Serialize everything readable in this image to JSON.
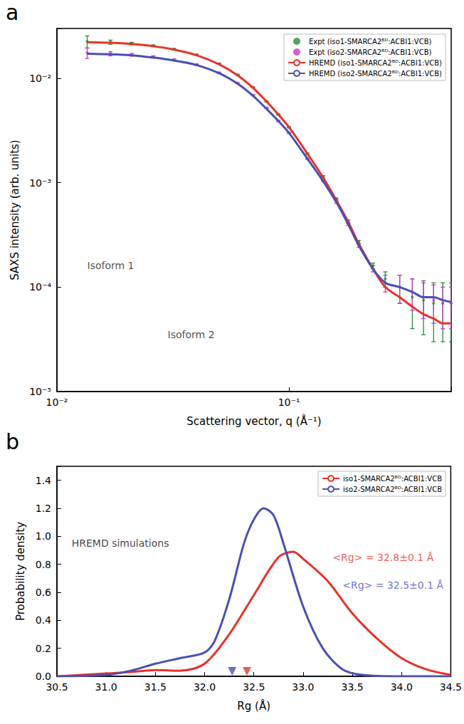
{
  "chart_data": [
    {
      "panel": "a",
      "type": "line",
      "log": true,
      "xlabel": "Scattering vector, q (Å⁻¹)",
      "ylabel": "SAXS intensity (arb. units)",
      "xlim": [
        0.01,
        0.5
      ],
      "ylim": [
        1e-05,
        0.03
      ],
      "xticks": [
        {
          "value": 0.01,
          "label": "10⁻²"
        },
        {
          "value": 0.1,
          "label": "10⁻¹"
        }
      ],
      "yticks": [
        {
          "value": 1e-05,
          "label": "10⁻⁵"
        },
        {
          "value": 0.0001,
          "label": "10⁻⁴"
        },
        {
          "value": 0.001,
          "label": "10⁻³"
        },
        {
          "value": 0.01,
          "label": "10⁻²"
        }
      ],
      "grid": false,
      "legend": "upper right",
      "series": [
        {
          "name": "Expt (iso1-SMARCA2ᴮᴰ:ACBI1:VCB)",
          "type": "scatter",
          "color": "#2a8a3a",
          "x": [
            0.0135,
            0.017,
            0.021,
            0.026,
            0.032,
            0.04,
            0.05,
            0.06,
            0.07,
            0.08,
            0.09,
            0.1,
            0.12,
            0.14,
            0.16,
            0.18,
            0.2,
            0.23,
            0.26,
            0.3,
            0.34,
            0.38,
            0.42,
            0.46,
            0.5
          ],
          "values": [
            0.0225,
            0.0222,
            0.0215,
            0.0205,
            0.019,
            0.0168,
            0.0138,
            0.0108,
            0.0082,
            0.006,
            0.0045,
            0.0034,
            0.0019,
            0.00115,
            0.0007,
            0.00043,
            0.00027,
            0.00016,
            0.00012,
            0.0001,
            8e-05,
            7.5e-05,
            7e-05,
            7e-05,
            7e-05
          ],
          "errors": [
            0.003,
            0.001,
            0.0006,
            0.0004,
            0.0003,
            0.0002,
            0.00015,
            0.0001,
            8e-05,
            6e-05,
            5e-05,
            4e-05,
            3e-05,
            2e-05,
            1.5e-05,
            1e-05,
            1e-05,
            1e-05,
            2e-05,
            3e-05,
            4e-05,
            4e-05,
            4e-05,
            4e-05,
            4e-05
          ]
        },
        {
          "name": "Expt (iso2-SMARCA2ᴮᴰ:ACBI1:VCB)",
          "type": "scatter",
          "color": "#c03cc0",
          "x": [
            0.0135,
            0.017,
            0.021,
            0.026,
            0.032,
            0.04,
            0.05,
            0.06,
            0.07,
            0.08,
            0.09,
            0.1,
            0.12,
            0.14,
            0.16,
            0.18,
            0.2,
            0.23,
            0.26,
            0.3,
            0.34,
            0.38,
            0.42,
            0.46,
            0.5
          ],
          "values": [
            0.0175,
            0.0172,
            0.0168,
            0.016,
            0.015,
            0.0135,
            0.0113,
            0.009,
            0.0069,
            0.0052,
            0.0039,
            0.003,
            0.0017,
            0.00105,
            0.00065,
            0.0004,
            0.00025,
            0.00015,
            0.00011,
            0.0001,
            9e-05,
            8e-05,
            7.5e-05,
            7e-05,
            7e-05
          ],
          "errors": [
            0.002,
            0.0008,
            0.0005,
            0.0004,
            0.0003,
            0.0002,
            0.00015,
            0.0001,
            8e-05,
            6e-05,
            5e-05,
            4e-05,
            3e-05,
            2e-05,
            1.5e-05,
            1e-05,
            1e-05,
            1e-05,
            2e-05,
            3e-05,
            3e-05,
            3e-05,
            3e-05,
            3e-05,
            3e-05
          ]
        },
        {
          "name": "HREMD (iso1-SMARCA2ᴮᴰ:ACBI1:VCB)",
          "type": "line",
          "color": "#e8312a",
          "x": [
            0.0135,
            0.017,
            0.021,
            0.026,
            0.032,
            0.04,
            0.05,
            0.06,
            0.07,
            0.08,
            0.09,
            0.1,
            0.12,
            0.14,
            0.16,
            0.18,
            0.2,
            0.23,
            0.26,
            0.3,
            0.34,
            0.38,
            0.42,
            0.46,
            0.5
          ],
          "values": [
            0.0222,
            0.0219,
            0.0213,
            0.0203,
            0.0188,
            0.0166,
            0.0136,
            0.0107,
            0.0081,
            0.006,
            0.0045,
            0.0034,
            0.0019,
            0.00113,
            0.00068,
            0.00042,
            0.00026,
            0.00015,
            0.0001,
            8e-05,
            6.5e-05,
            5.5e-05,
            5e-05,
            4.5e-05,
            4.5e-05
          ]
        },
        {
          "name": "HREMD (iso2-SMARCA2ᴮᴰ:ACBI1:VCB)",
          "type": "line",
          "color": "#4a4fb3",
          "x": [
            0.0135,
            0.017,
            0.021,
            0.026,
            0.032,
            0.04,
            0.05,
            0.06,
            0.07,
            0.08,
            0.09,
            0.1,
            0.12,
            0.14,
            0.16,
            0.18,
            0.2,
            0.23,
            0.26,
            0.3,
            0.34,
            0.38,
            0.42,
            0.46,
            0.5
          ],
          "values": [
            0.0172,
            0.017,
            0.0166,
            0.0158,
            0.0148,
            0.0134,
            0.0112,
            0.0089,
            0.0068,
            0.0051,
            0.0039,
            0.003,
            0.0017,
            0.00104,
            0.00065,
            0.0004,
            0.00025,
            0.00015,
            0.00011,
            0.0001,
            9e-05,
            8e-05,
            8e-05,
            7.5e-05,
            7.2e-05
          ]
        }
      ],
      "annotations": [
        {
          "text": "Isoform 1",
          "x": 0.0135,
          "y": 0.00016,
          "color": "#222222"
        },
        {
          "text": "Isoform 2",
          "x": 0.03,
          "y": 3.5e-05,
          "color": "#222222"
        }
      ]
    },
    {
      "panel": "b",
      "type": "line",
      "xlabel": "Rg (Å)",
      "ylabel": "Probability density",
      "xlim": [
        30.5,
        34.5
      ],
      "ylim": [
        0,
        1.5
      ],
      "xticks": [
        30.5,
        {
          "value": 31,
          "label": "31.0"
        },
        31.5,
        {
          "value": 32,
          "label": "32.0"
        },
        32.5,
        {
          "value": 33,
          "label": "33.0"
        },
        33.5,
        {
          "value": 34,
          "label": "34.0"
        },
        34.5
      ],
      "yticks": [
        {
          "value": 0,
          "label": "0.0"
        },
        0.2,
        0.4,
        0.6,
        0.8,
        {
          "value": 1,
          "label": "1.0"
        },
        1.2,
        1.4
      ],
      "grid": false,
      "legend": "upper right",
      "series": [
        {
          "name": "iso1-SMARCA2ᴮᴰ:ACBI1:VCB",
          "color": "#e8312a",
          "rg_marker": 32.43,
          "x": [
            30.5,
            30.75,
            31.0,
            31.25,
            31.5,
            31.75,
            32.0,
            32.25,
            32.5,
            32.75,
            32.9,
            33.0,
            33.25,
            33.5,
            33.75,
            34.0,
            34.25,
            34.5
          ],
          "values": [
            0.0,
            0.01,
            0.02,
            0.03,
            0.045,
            0.04,
            0.09,
            0.3,
            0.58,
            0.85,
            0.89,
            0.84,
            0.68,
            0.45,
            0.27,
            0.13,
            0.05,
            0.01
          ]
        },
        {
          "name": "iso2-SMARCA2ᴮᴰ:ACBI1:VCB",
          "color": "#4a4fb3",
          "rg_marker": 32.28,
          "x": [
            30.5,
            31.0,
            31.25,
            31.5,
            31.75,
            32.0,
            32.1,
            32.25,
            32.4,
            32.5,
            32.6,
            32.7,
            32.8,
            33.0,
            33.2,
            33.4,
            33.6,
            34.0,
            34.5
          ],
          "values": [
            0.0,
            0.01,
            0.04,
            0.09,
            0.13,
            0.17,
            0.25,
            0.55,
            0.95,
            1.12,
            1.2,
            1.15,
            0.95,
            0.5,
            0.2,
            0.05,
            0.01,
            0.0,
            0.0
          ]
        }
      ],
      "annotations": [
        {
          "text": "HREMD simulations",
          "x": 30.65,
          "y": 0.95,
          "color": "#111111"
        },
        {
          "text": "<Rg> = 32.8±0.1 Å",
          "x": 33.3,
          "y": 0.85,
          "color": "#e8312a"
        },
        {
          "text": "<Rg> = 32.5±0.1 Å",
          "x": 33.4,
          "y": 0.65,
          "color": "#4a4fb3"
        }
      ]
    }
  ]
}
